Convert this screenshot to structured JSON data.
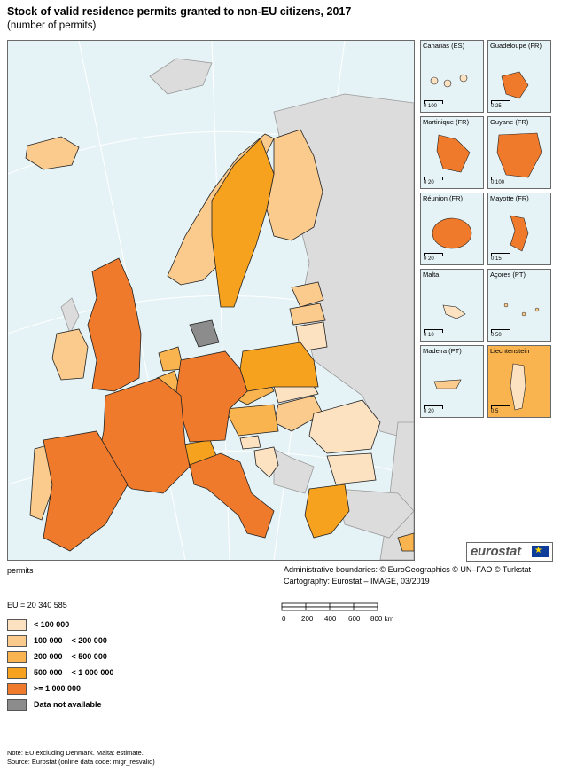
{
  "title": "Stock of valid residence permits granted to non-EU citizens, 2017",
  "subtitle": "(number of permits)",
  "colors": {
    "sea": "#e6f3f6",
    "non_covered": "#dcdcdc",
    "lt100k": "#fde2c2",
    "100k_200k": "#fbca8d",
    "200k_500k": "#f9b450",
    "500k_1m": "#f6a21f",
    "ge1m": "#f07a2c",
    "na": "#8c8c8c",
    "border": "#222222"
  },
  "legend": {
    "total": "EU = 20 340 585",
    "items": [
      {
        "label": "< 100 000",
        "color": "#fde2c2"
      },
      {
        "label": "100 000 – < 200 000",
        "color": "#fbca8d"
      },
      {
        "label": "200 000 – < 500 000",
        "color": "#f9b450"
      },
      {
        "label": "500 000 – < 1 000 000",
        "color": "#f6a21f"
      },
      {
        "label": ">= 1 000 000",
        "color": "#f07a2c"
      },
      {
        "label": "Data not available",
        "color": "#8c8c8c"
      }
    ]
  },
  "unit_label": "permits",
  "credits": {
    "line1": "Administrative boundaries: © EuroGeographics © UN–FAO © Turkstat",
    "line2": "Cartography: Eurostat – IMAGE, 03/2019"
  },
  "scale": {
    "ticks": [
      "0",
      "200",
      "400",
      "600",
      "800 km"
    ]
  },
  "insets": [
    {
      "name": "Canarias (ES)",
      "scale": "0 100",
      "color": "#fde2c2"
    },
    {
      "name": "Guadeloupe (FR)",
      "scale": "0 25",
      "color": "#f07a2c"
    },
    {
      "name": "Martinique (FR)",
      "scale": "0 20",
      "color": "#f07a2c"
    },
    {
      "name": "Guyane (FR)",
      "scale": "0 100",
      "color": "#f07a2c"
    },
    {
      "name": "Réunion (FR)",
      "scale": "0 20",
      "color": "#f07a2c"
    },
    {
      "name": "Mayotte (FR)",
      "scale": "0 15",
      "color": "#f07a2c"
    },
    {
      "name": "Malta",
      "scale": "0 10",
      "color": "#fde2c2"
    },
    {
      "name": "Açores (PT)",
      "scale": "0 50",
      "color": "#fbca8d"
    },
    {
      "name": "Madeira (PT)",
      "scale": "0 20",
      "color": "#fbca8d"
    },
    {
      "name": "Liechtenstein",
      "scale": "0 5",
      "color": "#fde2c2"
    }
  ],
  "logo": "eurostat",
  "notes": {
    "line1": "Note: EU excluding Denmark. Malta: estimate.",
    "line2": "Source: Eurostat (online data code: migr_resvalid)"
  }
}
